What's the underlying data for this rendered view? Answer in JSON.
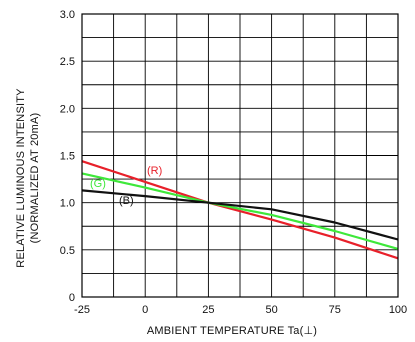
{
  "chart_data": {
    "type": "line",
    "title": "",
    "xlabel": "AMBIENT TEMPERATURE Ta(⊥)",
    "ylabel_line1": "RELATIVE LUMINOUS INTENSITY",
    "ylabel_line2": "(NORMALIZED AT 20mA)",
    "xlim": [
      -25,
      100
    ],
    "ylim": [
      0,
      3.0
    ],
    "x_ticks": [
      -25,
      0,
      25,
      50,
      75,
      100
    ],
    "x_tick_labels": [
      "-25",
      "0",
      "25",
      "50",
      "75",
      "100"
    ],
    "x_grid_step": 12.5,
    "y_ticks": [
      0,
      0.5,
      1.0,
      1.5,
      2.0,
      2.5,
      3.0
    ],
    "y_tick_labels": [
      "0",
      "0.5",
      "1.0",
      "1.5",
      "2.0",
      "2.5",
      "3.0"
    ],
    "y_grid_step": 0.25,
    "grid": true,
    "series": [
      {
        "name": "(R)",
        "color": "#e8202a",
        "x": [
          -25,
          0,
          25,
          50,
          75,
          100
        ],
        "y": [
          1.44,
          1.22,
          1.0,
          0.82,
          0.63,
          0.41
        ]
      },
      {
        "name": "(G)",
        "color": "#3ee83a",
        "x": [
          -25,
          0,
          25,
          50,
          75,
          100
        ],
        "y": [
          1.31,
          1.16,
          1.0,
          0.87,
          0.7,
          0.51
        ]
      },
      {
        "name": "(B)",
        "color": "#111111",
        "x": [
          -25,
          0,
          25,
          50,
          75,
          100
        ],
        "y": [
          1.13,
          1.07,
          1.0,
          0.93,
          0.79,
          0.61
        ]
      }
    ]
  }
}
